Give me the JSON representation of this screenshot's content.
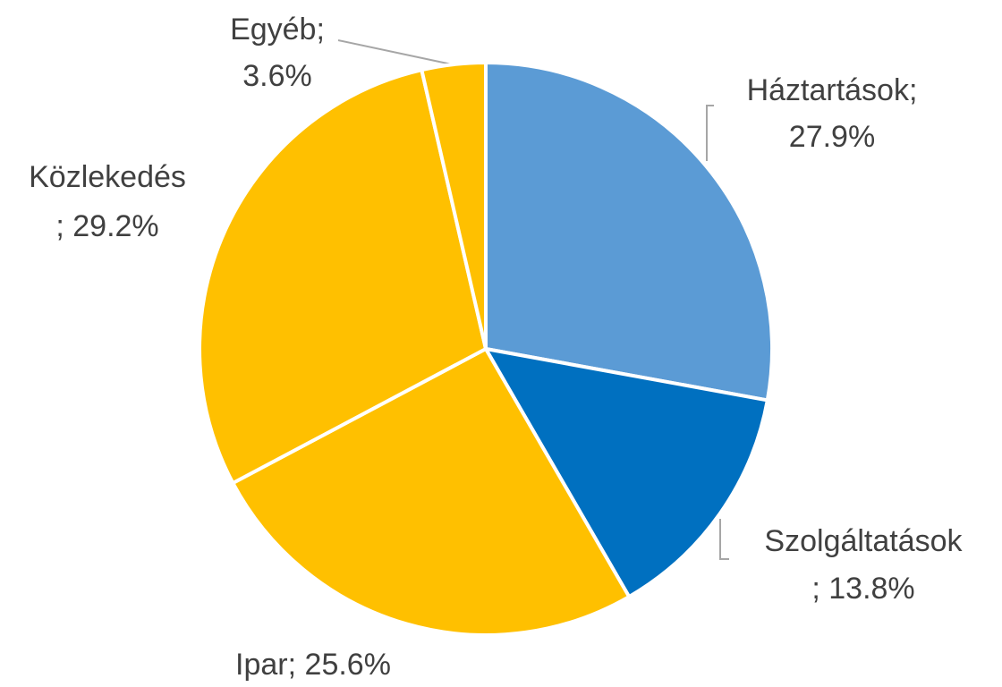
{
  "chart_data": {
    "type": "pie",
    "categories": [
      "Háztartások",
      "Szolgáltatások",
      "Ipar",
      "Közlekedés",
      "Egyéb"
    ],
    "values": [
      27.9,
      13.8,
      25.6,
      29.2,
      3.6
    ],
    "value_labels": [
      "27.9%",
      "13.8%",
      "25.6%",
      "29.2%",
      "3.6%"
    ],
    "label_separator": "; ",
    "colors": [
      "#5b9bd5",
      "#0070c0",
      "#ffc000",
      "#ffc000",
      "#ffc000"
    ]
  }
}
